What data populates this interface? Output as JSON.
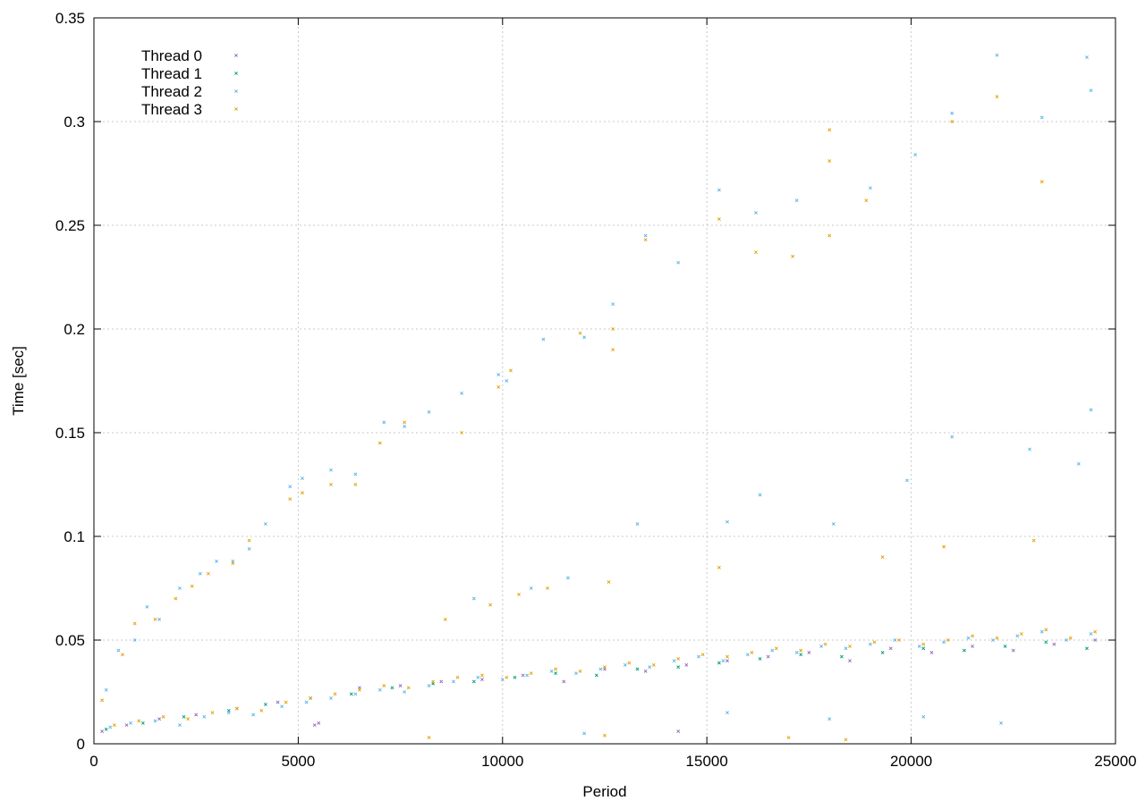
{
  "chart_data": {
    "type": "scatter",
    "title": "",
    "xlabel": "Period",
    "ylabel": "Time [sec]",
    "xlim": [
      0,
      25000
    ],
    "ylim": [
      0,
      0.35
    ],
    "x_ticks": [
      0,
      5000,
      10000,
      15000,
      20000,
      25000
    ],
    "x_tick_labels": [
      "0",
      "5000",
      "10000",
      "15000",
      "20000",
      "25000"
    ],
    "y_ticks": [
      0,
      0.05,
      0.1,
      0.15,
      0.2,
      0.25,
      0.3,
      0.35
    ],
    "y_tick_labels": [
      "0",
      "0.05",
      "0.1",
      "0.15",
      "0.2",
      "0.25",
      "0.3",
      "0.35"
    ],
    "grid": true,
    "legend_position": "top-left",
    "marker": "x",
    "series": [
      {
        "name": "Thread 0",
        "color": "#9467bd",
        "points": [
          [
            200,
            0.006
          ],
          [
            800,
            0.009
          ],
          [
            1600,
            0.012
          ],
          [
            2500,
            0.014
          ],
          [
            3500,
            0.017
          ],
          [
            4500,
            0.02
          ],
          [
            5500,
            0.01
          ],
          [
            6500,
            0.027
          ],
          [
            7500,
            0.028
          ],
          [
            8500,
            0.03
          ],
          [
            9500,
            0.031
          ],
          [
            10500,
            0.033
          ],
          [
            11500,
            0.03
          ],
          [
            12500,
            0.036
          ],
          [
            13500,
            0.035
          ],
          [
            14500,
            0.038
          ],
          [
            15500,
            0.04
          ],
          [
            16500,
            0.042
          ],
          [
            17500,
            0.044
          ],
          [
            18500,
            0.04
          ],
          [
            19500,
            0.046
          ],
          [
            20500,
            0.044
          ],
          [
            21500,
            0.047
          ],
          [
            22500,
            0.045
          ],
          [
            23500,
            0.048
          ],
          [
            24500,
            0.05
          ],
          [
            5400,
            0.009
          ],
          [
            14300,
            0.006
          ]
        ]
      },
      {
        "name": "Thread 1",
        "color": "#009e73",
        "points": [
          [
            300,
            0.007
          ],
          [
            1200,
            0.01
          ],
          [
            2200,
            0.013
          ],
          [
            3300,
            0.016
          ],
          [
            4200,
            0.019
          ],
          [
            5300,
            0.022
          ],
          [
            6300,
            0.024
          ],
          [
            7300,
            0.027
          ],
          [
            8300,
            0.029
          ],
          [
            9300,
            0.03
          ],
          [
            10300,
            0.032
          ],
          [
            11300,
            0.034
          ],
          [
            12300,
            0.033
          ],
          [
            13300,
            0.036
          ],
          [
            14300,
            0.037
          ],
          [
            15300,
            0.039
          ],
          [
            16300,
            0.041
          ],
          [
            17300,
            0.043
          ],
          [
            18300,
            0.042
          ],
          [
            19300,
            0.044
          ],
          [
            20300,
            0.046
          ],
          [
            21300,
            0.045
          ],
          [
            22300,
            0.047
          ],
          [
            23300,
            0.049
          ],
          [
            24300,
            0.046
          ]
        ]
      },
      {
        "name": "Thread 2",
        "color": "#56b4e9",
        "points": [
          [
            400,
            0.008
          ],
          [
            900,
            0.01
          ],
          [
            1500,
            0.011
          ],
          [
            2100,
            0.009
          ],
          [
            2700,
            0.013
          ],
          [
            3300,
            0.015
          ],
          [
            3900,
            0.014
          ],
          [
            4600,
            0.018
          ],
          [
            5200,
            0.02
          ],
          [
            5800,
            0.022
          ],
          [
            6400,
            0.024
          ],
          [
            7000,
            0.026
          ],
          [
            7600,
            0.025
          ],
          [
            8200,
            0.028
          ],
          [
            8800,
            0.03
          ],
          [
            9400,
            0.032
          ],
          [
            10000,
            0.031
          ],
          [
            10600,
            0.033
          ],
          [
            11200,
            0.035
          ],
          [
            11800,
            0.034
          ],
          [
            12400,
            0.036
          ],
          [
            13000,
            0.038
          ],
          [
            13600,
            0.037
          ],
          [
            14200,
            0.04
          ],
          [
            14800,
            0.042
          ],
          [
            15400,
            0.04
          ],
          [
            16000,
            0.043
          ],
          [
            16600,
            0.045
          ],
          [
            17200,
            0.044
          ],
          [
            17800,
            0.047
          ],
          [
            18400,
            0.046
          ],
          [
            19000,
            0.048
          ],
          [
            19600,
            0.05
          ],
          [
            20200,
            0.047
          ],
          [
            20800,
            0.049
          ],
          [
            21400,
            0.051
          ],
          [
            22000,
            0.05
          ],
          [
            22600,
            0.052
          ],
          [
            23200,
            0.054
          ],
          [
            23800,
            0.05
          ],
          [
            24400,
            0.053
          ],
          [
            12000,
            0.005
          ],
          [
            15500,
            0.015
          ],
          [
            18000,
            0.012
          ],
          [
            20300,
            0.013
          ],
          [
            22200,
            0.01
          ],
          [
            13500,
            0.245
          ],
          [
            14300,
            0.232
          ],
          [
            15300,
            0.267
          ],
          [
            16200,
            0.256
          ],
          [
            17200,
            0.262
          ],
          [
            19000,
            0.268
          ],
          [
            20100,
            0.284
          ],
          [
            21000,
            0.304
          ],
          [
            22100,
            0.332
          ],
          [
            23200,
            0.302
          ],
          [
            24300,
            0.331
          ],
          [
            24400,
            0.315
          ],
          [
            24400,
            0.161
          ],
          [
            21000,
            0.148
          ],
          [
            22900,
            0.142
          ],
          [
            24100,
            0.135
          ],
          [
            16300,
            0.12
          ],
          [
            19900,
            0.127
          ],
          [
            18100,
            0.106
          ],
          [
            15500,
            0.107
          ],
          [
            12000,
            0.196
          ],
          [
            11000,
            0.195
          ],
          [
            9900,
            0.178
          ],
          [
            9000,
            0.169
          ],
          [
            8200,
            0.16
          ],
          [
            7100,
            0.155
          ],
          [
            6400,
            0.13
          ],
          [
            5800,
            0.132
          ],
          [
            5100,
            0.128
          ],
          [
            4800,
            0.124
          ],
          [
            4200,
            0.106
          ],
          [
            3800,
            0.094
          ],
          [
            3400,
            0.088
          ],
          [
            3000,
            0.088
          ],
          [
            2600,
            0.082
          ],
          [
            2100,
            0.075
          ],
          [
            1600,
            0.06
          ],
          [
            1000,
            0.05
          ],
          [
            600,
            0.045
          ],
          [
            300,
            0.026
          ],
          [
            1300,
            0.066
          ],
          [
            7600,
            0.153
          ],
          [
            10100,
            0.175
          ],
          [
            12700,
            0.212
          ],
          [
            13300,
            0.106
          ],
          [
            10700,
            0.075
          ],
          [
            9300,
            0.07
          ],
          [
            11600,
            0.08
          ]
        ]
      },
      {
        "name": "Thread 3",
        "color": "#e69f00",
        "points": [
          [
            500,
            0.009
          ],
          [
            1100,
            0.011
          ],
          [
            1700,
            0.013
          ],
          [
            2300,
            0.012
          ],
          [
            2900,
            0.015
          ],
          [
            3500,
            0.017
          ],
          [
            4100,
            0.016
          ],
          [
            4700,
            0.02
          ],
          [
            5300,
            0.022
          ],
          [
            5900,
            0.024
          ],
          [
            6500,
            0.026
          ],
          [
            7100,
            0.028
          ],
          [
            7700,
            0.027
          ],
          [
            8300,
            0.03
          ],
          [
            8900,
            0.032
          ],
          [
            9500,
            0.033
          ],
          [
            10100,
            0.032
          ],
          [
            10700,
            0.034
          ],
          [
            11300,
            0.036
          ],
          [
            11900,
            0.035
          ],
          [
            12500,
            0.037
          ],
          [
            13100,
            0.039
          ],
          [
            13700,
            0.038
          ],
          [
            14300,
            0.041
          ],
          [
            14900,
            0.043
          ],
          [
            15500,
            0.042
          ],
          [
            16100,
            0.044
          ],
          [
            16700,
            0.046
          ],
          [
            17300,
            0.045
          ],
          [
            17900,
            0.048
          ],
          [
            18500,
            0.047
          ],
          [
            19100,
            0.049
          ],
          [
            19700,
            0.05
          ],
          [
            20300,
            0.048
          ],
          [
            20900,
            0.05
          ],
          [
            21500,
            0.052
          ],
          [
            22100,
            0.051
          ],
          [
            22700,
            0.053
          ],
          [
            23300,
            0.055
          ],
          [
            23900,
            0.051
          ],
          [
            24500,
            0.054
          ],
          [
            8200,
            0.003
          ],
          [
            12500,
            0.004
          ],
          [
            17000,
            0.003
          ],
          [
            18400,
            0.002
          ],
          [
            12700,
            0.2
          ],
          [
            11900,
            0.198
          ],
          [
            13500,
            0.243
          ],
          [
            15300,
            0.253
          ],
          [
            18000,
            0.296
          ],
          [
            18000,
            0.245
          ],
          [
            16200,
            0.237
          ],
          [
            17100,
            0.235
          ],
          [
            18000,
            0.281
          ],
          [
            18900,
            0.262
          ],
          [
            21000,
            0.3
          ],
          [
            22100,
            0.312
          ],
          [
            23200,
            0.271
          ],
          [
            12700,
            0.19
          ],
          [
            9900,
            0.172
          ],
          [
            10200,
            0.18
          ],
          [
            9000,
            0.15
          ],
          [
            7600,
            0.155
          ],
          [
            7000,
            0.145
          ],
          [
            6400,
            0.125
          ],
          [
            5800,
            0.125
          ],
          [
            5100,
            0.121
          ],
          [
            4800,
            0.118
          ],
          [
            3800,
            0.098
          ],
          [
            3400,
            0.087
          ],
          [
            2800,
            0.082
          ],
          [
            2400,
            0.076
          ],
          [
            2000,
            0.07
          ],
          [
            1500,
            0.06
          ],
          [
            1000,
            0.058
          ],
          [
            700,
            0.043
          ],
          [
            200,
            0.021
          ],
          [
            11100,
            0.075
          ],
          [
            10400,
            0.072
          ],
          [
            9700,
            0.067
          ],
          [
            8600,
            0.06
          ],
          [
            12600,
            0.078
          ],
          [
            15300,
            0.085
          ],
          [
            19300,
            0.09
          ],
          [
            20800,
            0.095
          ],
          [
            23000,
            0.098
          ]
        ]
      }
    ]
  }
}
